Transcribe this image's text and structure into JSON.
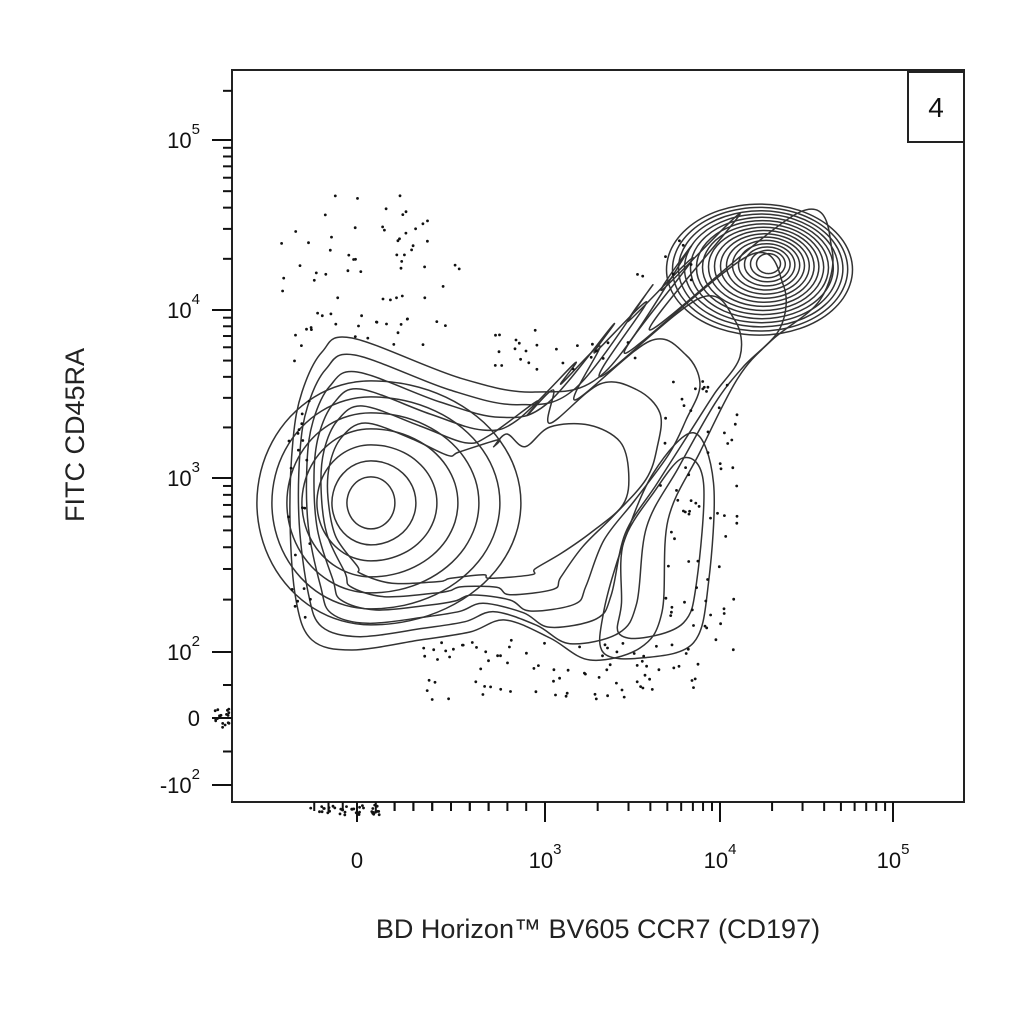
{
  "chart_data": {
    "type": "contour",
    "panel_label": "4",
    "xlabel": "BD Horizon™ BV605 CCR7 (CD197)",
    "ylabel": "FITC CD45RA",
    "x_axis": {
      "scale": "biexponential",
      "range": [
        -400,
        200000
      ],
      "ticks": [
        {
          "value": 0,
          "base": "0",
          "exp": ""
        },
        {
          "value": 1000,
          "base": "10",
          "exp": "3"
        },
        {
          "value": 10000,
          "base": "10",
          "exp": "4"
        },
        {
          "value": 100000,
          "base": "10",
          "exp": "5"
        }
      ]
    },
    "y_axis": {
      "scale": "biexponential",
      "range": [
        -150,
        250000
      ],
      "ticks": [
        {
          "value": -100,
          "base": "-10",
          "exp": "2"
        },
        {
          "value": 0,
          "base": "0",
          "exp": ""
        },
        {
          "value": 100,
          "base": "10",
          "exp": "2"
        },
        {
          "value": 1000,
          "base": "10",
          "exp": "3"
        },
        {
          "value": 10000,
          "base": "10",
          "exp": "4"
        },
        {
          "value": 100000,
          "base": "10",
          "exp": "5"
        }
      ]
    },
    "populations": [
      {
        "name": "",
        "center": {
          "x": 5,
          "y": 800
        }
      },
      {
        "name": "",
        "center": {
          "x": 15000,
          "y": 18000
        }
      },
      {
        "name": "",
        "center": {
          "x": 3000,
          "y": 250
        }
      }
    ],
    "grid": false,
    "legend": "none"
  }
}
